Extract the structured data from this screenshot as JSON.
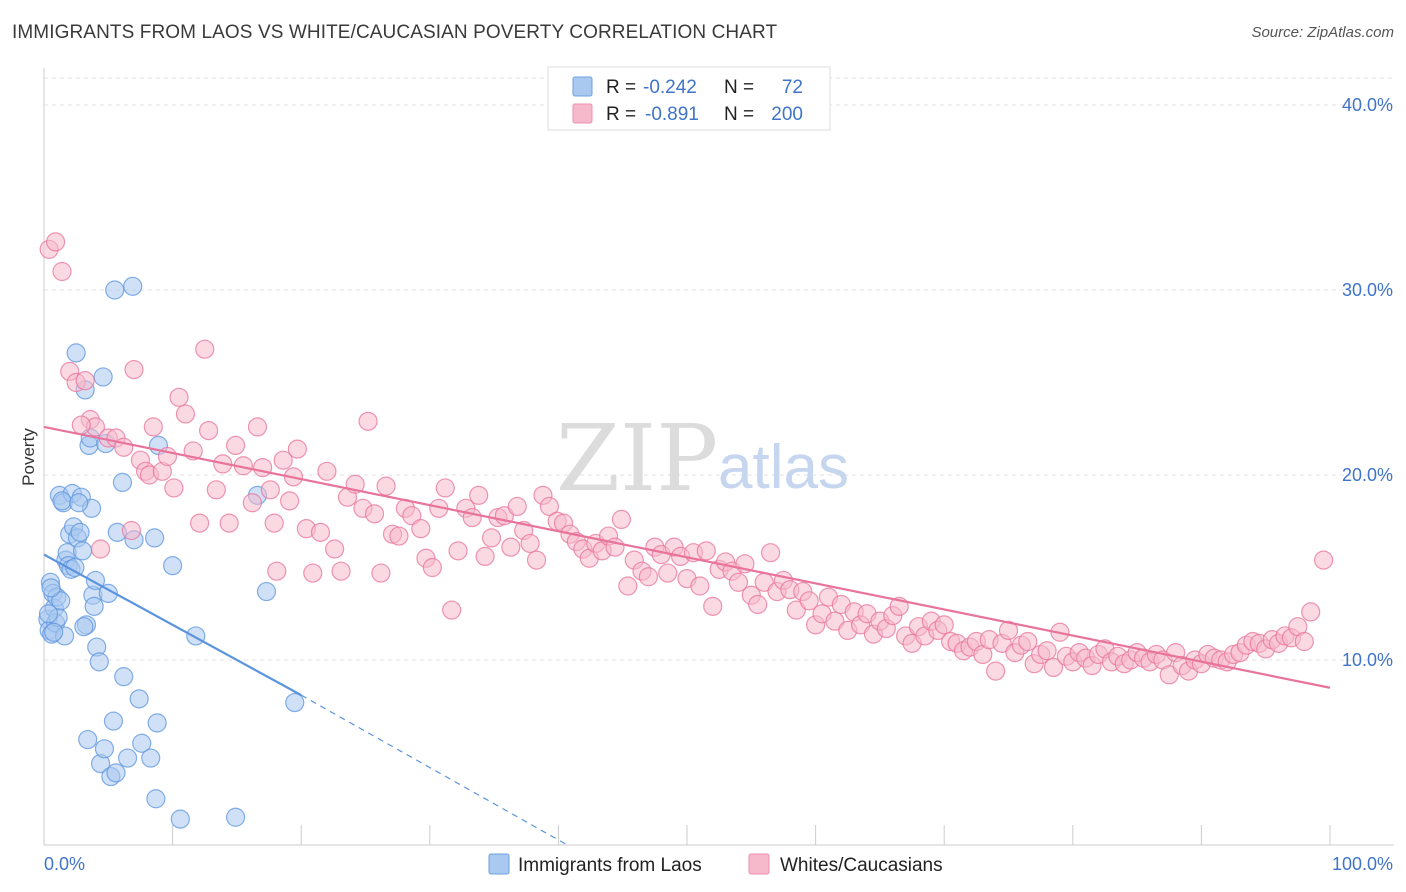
{
  "header": {
    "title": "IMMIGRANTS FROM LAOS VS WHITE/CAUCASIAN POVERTY CORRELATION CHART",
    "source": "Source: ZipAtlas.com"
  },
  "watermark": {
    "zip": "ZIP",
    "atlas": "atlas"
  },
  "legend_top": {
    "rows": [
      {
        "r_label": "R =",
        "r_value": "-0.242",
        "n_label": "N =",
        "n_value": "72",
        "color": "#a9c9f1"
      },
      {
        "r_label": "R =",
        "r_value": "-0.891",
        "n_label": "N =",
        "n_value": "200",
        "color": "#f6b9cc"
      }
    ]
  },
  "legend_bottom": {
    "items": [
      {
        "label": "Immigrants from Laos",
        "color": "#a9c9f1"
      },
      {
        "label": "Whites/Caucasians",
        "color": "#f6b9cc"
      }
    ]
  },
  "chart_data": {
    "type": "scatter",
    "title": "IMMIGRANTS FROM LAOS VS WHITE/CAUCASIAN POVERTY CORRELATION CHART",
    "xlabel": "",
    "ylabel": "Poverty",
    "xlim": [
      0,
      100
    ],
    "ylim": [
      0,
      42
    ],
    "x_ticks": [
      "0.0%",
      "100.0%"
    ],
    "y_ticks": [
      {
        "value": 10,
        "label": "10.0%"
      },
      {
        "value": 20,
        "label": "20.0%"
      },
      {
        "value": 30,
        "label": "30.0%"
      },
      {
        "value": 40,
        "label": "40.0%"
      }
    ],
    "grid": true,
    "legend_position": "top-center",
    "series": [
      {
        "name": "Immigrants from Laos",
        "color": "#5b94de",
        "fill": "#a9c9f1",
        "trend": {
          "x": [
            0,
            20
          ],
          "y": [
            15.7,
            8.1
          ],
          "extended_to": [
            40.7,
            0
          ]
        },
        "points": [
          [
            0.3,
            12.2
          ],
          [
            0.4,
            11.6
          ],
          [
            0.5,
            14.2
          ],
          [
            0.6,
            11.4
          ],
          [
            0.7,
            13.6
          ],
          [
            0.8,
            12.8
          ],
          [
            0.9,
            12.0
          ],
          [
            1.0,
            13.4
          ],
          [
            1.1,
            12.3
          ],
          [
            1.2,
            18.9
          ],
          [
            1.3,
            13.2
          ],
          [
            1.5,
            18.5
          ],
          [
            1.6,
            11.3
          ],
          [
            1.7,
            15.4
          ],
          [
            1.8,
            15.8
          ],
          [
            1.9,
            15.1
          ],
          [
            2.0,
            16.8
          ],
          [
            2.1,
            14.9
          ],
          [
            2.2,
            19.0
          ],
          [
            2.3,
            17.2
          ],
          [
            2.4,
            15.0
          ],
          [
            2.5,
            26.6
          ],
          [
            2.6,
            16.6
          ],
          [
            2.8,
            16.9
          ],
          [
            2.9,
            18.8
          ],
          [
            3.0,
            15.9
          ],
          [
            3.2,
            24.6
          ],
          [
            3.3,
            11.9
          ],
          [
            3.4,
            5.7
          ],
          [
            3.5,
            21.6
          ],
          [
            3.6,
            22.0
          ],
          [
            3.7,
            18.2
          ],
          [
            3.8,
            13.5
          ],
          [
            3.9,
            12.9
          ],
          [
            4.0,
            14.3
          ],
          [
            4.1,
            10.7
          ],
          [
            4.3,
            9.9
          ],
          [
            4.4,
            4.4
          ],
          [
            4.6,
            25.3
          ],
          [
            4.7,
            5.2
          ],
          [
            4.8,
            21.7
          ],
          [
            5.0,
            13.6
          ],
          [
            5.2,
            3.7
          ],
          [
            5.4,
            6.7
          ],
          [
            5.5,
            30.0
          ],
          [
            5.6,
            3.9
          ],
          [
            5.7,
            16.9
          ],
          [
            6.1,
            19.6
          ],
          [
            6.2,
            9.1
          ],
          [
            6.5,
            4.7
          ],
          [
            6.9,
            30.2
          ],
          [
            7.0,
            16.5
          ],
          [
            7.4,
            7.9
          ],
          [
            7.6,
            5.5
          ],
          [
            8.3,
            4.7
          ],
          [
            8.6,
            16.6
          ],
          [
            8.7,
            2.5
          ],
          [
            8.8,
            6.6
          ],
          [
            8.9,
            21.6
          ],
          [
            10.0,
            15.1
          ],
          [
            10.6,
            1.4
          ],
          [
            11.8,
            11.3
          ],
          [
            14.9,
            1.5
          ],
          [
            16.6,
            18.9
          ],
          [
            17.3,
            13.7
          ],
          [
            19.5,
            7.7
          ],
          [
            0.35,
            12.5
          ],
          [
            0.55,
            13.9
          ],
          [
            0.75,
            11.5
          ],
          [
            1.4,
            18.6
          ],
          [
            2.7,
            18.5
          ],
          [
            3.1,
            11.8
          ]
        ]
      },
      {
        "name": "Whites/Caucasians",
        "color": "#e8739b",
        "fill": "#f6b9cc",
        "trend": {
          "x": [
            0,
            100
          ],
          "y": [
            22.6,
            8.5
          ]
        },
        "points": [
          [
            0.4,
            32.2
          ],
          [
            0.9,
            32.6
          ],
          [
            1.4,
            31.0
          ],
          [
            2.0,
            25.6
          ],
          [
            2.5,
            25.0
          ],
          [
            3.2,
            25.1
          ],
          [
            3.6,
            23.0
          ],
          [
            4.0,
            22.6
          ],
          [
            4.4,
            16.0
          ],
          [
            5.0,
            22.0
          ],
          [
            5.6,
            22.0
          ],
          [
            6.2,
            21.5
          ],
          [
            6.8,
            17.0
          ],
          [
            7.0,
            25.7
          ],
          [
            7.5,
            20.8
          ],
          [
            7.9,
            20.2
          ],
          [
            8.2,
            20.0
          ],
          [
            8.5,
            22.6
          ],
          [
            9.2,
            20.2
          ],
          [
            9.6,
            21.0
          ],
          [
            10.1,
            19.3
          ],
          [
            10.5,
            24.2
          ],
          [
            11.0,
            23.3
          ],
          [
            11.6,
            21.3
          ],
          [
            12.1,
            17.4
          ],
          [
            12.5,
            26.8
          ],
          [
            12.8,
            22.4
          ],
          [
            13.4,
            19.2
          ],
          [
            13.9,
            20.6
          ],
          [
            14.4,
            17.4
          ],
          [
            14.9,
            21.6
          ],
          [
            15.5,
            20.5
          ],
          [
            16.2,
            18.5
          ],
          [
            16.6,
            22.6
          ],
          [
            17.0,
            20.4
          ],
          [
            17.6,
            19.2
          ],
          [
            17.9,
            17.4
          ],
          [
            18.6,
            20.8
          ],
          [
            19.1,
            18.6
          ],
          [
            19.4,
            19.9
          ],
          [
            19.7,
            21.4
          ],
          [
            20.4,
            17.1
          ],
          [
            20.9,
            14.7
          ],
          [
            21.5,
            16.9
          ],
          [
            22.0,
            20.2
          ],
          [
            22.6,
            16.0
          ],
          [
            23.1,
            14.8
          ],
          [
            23.6,
            18.8
          ],
          [
            24.2,
            19.5
          ],
          [
            24.8,
            18.2
          ],
          [
            25.2,
            22.9
          ],
          [
            25.7,
            17.9
          ],
          [
            26.2,
            14.7
          ],
          [
            26.6,
            19.4
          ],
          [
            27.1,
            16.8
          ],
          [
            27.6,
            16.7
          ],
          [
            28.1,
            18.2
          ],
          [
            28.6,
            17.8
          ],
          [
            29.3,
            17.1
          ],
          [
            29.7,
            15.5
          ],
          [
            30.2,
            15.0
          ],
          [
            30.7,
            18.2
          ],
          [
            31.2,
            19.3
          ],
          [
            31.7,
            12.7
          ],
          [
            32.2,
            15.9
          ],
          [
            32.8,
            18.2
          ],
          [
            33.3,
            17.7
          ],
          [
            33.8,
            18.9
          ],
          [
            34.3,
            15.6
          ],
          [
            34.8,
            16.6
          ],
          [
            35.3,
            17.7
          ],
          [
            35.8,
            17.8
          ],
          [
            36.3,
            16.1
          ],
          [
            36.8,
            18.3
          ],
          [
            37.3,
            17.0
          ],
          [
            37.8,
            16.3
          ],
          [
            38.3,
            15.4
          ],
          [
            38.8,
            18.9
          ],
          [
            39.3,
            18.3
          ],
          [
            39.9,
            17.5
          ],
          [
            40.4,
            17.4
          ],
          [
            40.9,
            16.8
          ],
          [
            41.4,
            16.4
          ],
          [
            41.9,
            16.0
          ],
          [
            42.4,
            15.5
          ],
          [
            42.9,
            16.3
          ],
          [
            43.4,
            15.9
          ],
          [
            43.9,
            16.7
          ],
          [
            44.4,
            16.1
          ],
          [
            44.9,
            17.6
          ],
          [
            45.4,
            14.0
          ],
          [
            45.9,
            15.4
          ],
          [
            46.5,
            14.8
          ],
          [
            47.0,
            14.5
          ],
          [
            47.5,
            16.1
          ],
          [
            48.0,
            15.7
          ],
          [
            48.5,
            14.7
          ],
          [
            49.0,
            16.1
          ],
          [
            49.5,
            15.6
          ],
          [
            50.0,
            14.4
          ],
          [
            50.5,
            15.8
          ],
          [
            51.0,
            14.0
          ],
          [
            51.5,
            15.9
          ],
          [
            52.0,
            12.9
          ],
          [
            52.5,
            14.9
          ],
          [
            53.0,
            15.3
          ],
          [
            53.5,
            14.8
          ],
          [
            54.0,
            14.2
          ],
          [
            54.5,
            15.2
          ],
          [
            55.0,
            13.5
          ],
          [
            55.5,
            13.0
          ],
          [
            56.0,
            14.2
          ],
          [
            56.5,
            15.8
          ],
          [
            57.0,
            13.7
          ],
          [
            57.5,
            14.3
          ],
          [
            58.0,
            13.8
          ],
          [
            58.5,
            12.7
          ],
          [
            59.0,
            13.7
          ],
          [
            59.5,
            13.2
          ],
          [
            60.0,
            11.9
          ],
          [
            60.5,
            12.5
          ],
          [
            61.0,
            13.4
          ],
          [
            61.5,
            12.1
          ],
          [
            62.0,
            13.0
          ],
          [
            62.5,
            11.6
          ],
          [
            63.0,
            12.6
          ],
          [
            63.5,
            11.9
          ],
          [
            64.0,
            12.5
          ],
          [
            64.5,
            11.4
          ],
          [
            65.0,
            12.1
          ],
          [
            65.5,
            11.7
          ],
          [
            66.0,
            12.4
          ],
          [
            66.5,
            12.9
          ],
          [
            67.0,
            11.3
          ],
          [
            67.5,
            10.9
          ],
          [
            68.0,
            11.8
          ],
          [
            68.5,
            11.3
          ],
          [
            69.0,
            12.1
          ],
          [
            69.5,
            11.6
          ],
          [
            70.0,
            11.9
          ],
          [
            70.5,
            11.0
          ],
          [
            71.0,
            10.9
          ],
          [
            71.5,
            10.5
          ],
          [
            72.0,
            10.7
          ],
          [
            72.5,
            11.0
          ],
          [
            73.0,
            10.3
          ],
          [
            73.5,
            11.1
          ],
          [
            74.0,
            9.4
          ],
          [
            74.5,
            10.9
          ],
          [
            75.0,
            11.6
          ],
          [
            75.5,
            10.4
          ],
          [
            76.0,
            10.8
          ],
          [
            76.5,
            11.0
          ],
          [
            77.0,
            9.8
          ],
          [
            77.5,
            10.3
          ],
          [
            78.0,
            10.5
          ],
          [
            78.5,
            9.6
          ],
          [
            79.0,
            11.5
          ],
          [
            79.5,
            10.2
          ],
          [
            80.0,
            9.9
          ],
          [
            80.5,
            10.4
          ],
          [
            81.0,
            10.1
          ],
          [
            81.5,
            9.7
          ],
          [
            82.0,
            10.3
          ],
          [
            82.5,
            10.6
          ],
          [
            83.0,
            9.9
          ],
          [
            83.5,
            10.2
          ],
          [
            84.0,
            9.8
          ],
          [
            84.5,
            10.0
          ],
          [
            85.0,
            10.4
          ],
          [
            85.5,
            10.1
          ],
          [
            86.0,
            9.9
          ],
          [
            86.5,
            10.3
          ],
          [
            87.0,
            10.0
          ],
          [
            87.5,
            9.2
          ],
          [
            88.0,
            10.4
          ],
          [
            88.5,
            9.7
          ],
          [
            89.0,
            9.4
          ],
          [
            89.5,
            10.0
          ],
          [
            90.0,
            9.8
          ],
          [
            90.5,
            10.3
          ],
          [
            91.0,
            10.1
          ],
          [
            91.5,
            10.0
          ],
          [
            92.0,
            9.9
          ],
          [
            92.5,
            10.3
          ],
          [
            93.0,
            10.4
          ],
          [
            93.5,
            10.8
          ],
          [
            94.0,
            11.0
          ],
          [
            94.5,
            10.9
          ],
          [
            95.0,
            10.6
          ],
          [
            95.5,
            11.1
          ],
          [
            96.0,
            10.9
          ],
          [
            96.5,
            11.3
          ],
          [
            97.0,
            11.2
          ],
          [
            97.5,
            11.8
          ],
          [
            98.0,
            11.0
          ],
          [
            98.5,
            12.6
          ],
          [
            99.5,
            15.4
          ],
          [
            2.9,
            22.7
          ],
          [
            18.1,
            14.8
          ]
        ]
      }
    ]
  }
}
